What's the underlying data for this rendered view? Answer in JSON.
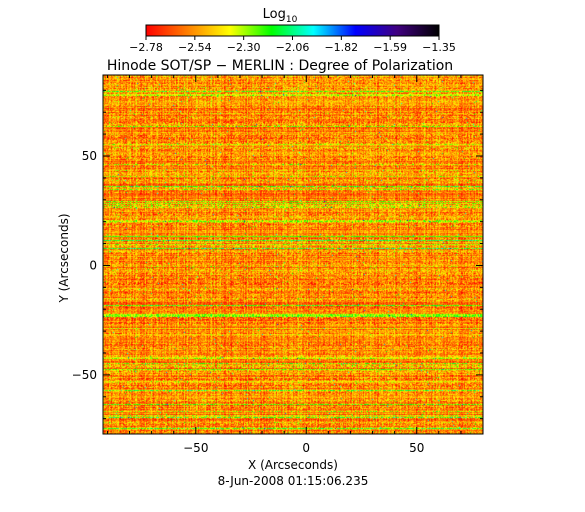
{
  "colorbar": {
    "label": "Log",
    "label_sub": "10",
    "tick_labels": [
      "-2.78",
      "-2.54",
      "-2.30",
      "-2.06",
      "-1.82",
      "-1.59",
      "-1.35"
    ],
    "range": [
      -2.78,
      -1.35
    ],
    "colormap": [
      "#ff0000",
      "#ff8000",
      "#ffff00",
      "#00ff00",
      "#00ffff",
      "#0000ff",
      "#400080",
      "#000000"
    ]
  },
  "footer": {
    "timestamp": "8-Jun-2008 01:15:06.235"
  },
  "chart_data": {
    "type": "heatmap",
    "title": "Hinode SOT/SP − MERLIN : Degree of Polarization",
    "xlabel": "X (Arcseconds)",
    "ylabel": "Y (Arcseconds)",
    "xlim": [
      -92,
      80
    ],
    "ylim": [
      -77,
      87
    ],
    "xticks": [
      -50,
      0,
      50
    ],
    "yticks": [
      -50,
      0,
      50
    ],
    "xtick_labels": [
      "−50",
      "0",
      "50"
    ],
    "ytick_labels": [
      "−50",
      "0",
      "50"
    ],
    "grid": false,
    "value_scale": "log10",
    "value_range": [
      -2.78,
      -1.35
    ],
    "texture": "horizontal streaks dominated by red/orange with yellow and green bands; occasional cyan pixels"
  }
}
